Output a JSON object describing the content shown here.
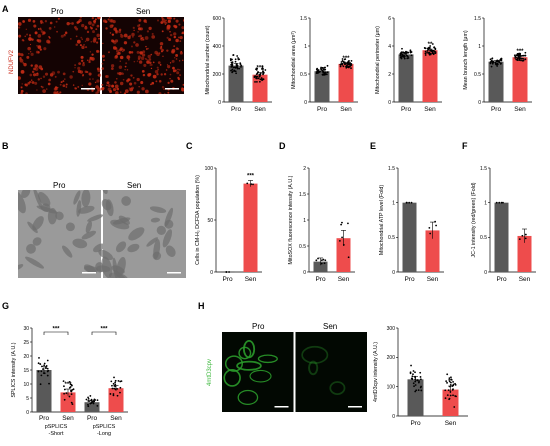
{
  "panel_labels": [
    "A",
    "B",
    "C",
    "D",
    "E",
    "F",
    "G",
    "H"
  ],
  "images": {
    "A": {
      "left_label": "Pro",
      "right_label": "Sen",
      "stain": "NDUFV2",
      "stain_color": "#cc2a1a",
      "bg": "#140303",
      "fg": "#c02a14"
    },
    "B": {
      "left_label": "Pro",
      "right_label": "Sen",
      "bg": "#9a9a9a",
      "fg": "#6e6e6e"
    },
    "H": {
      "left_label": "Pro",
      "right_label": "Sen",
      "stain": "4mtD3cpv",
      "stain_color": "#3fb83f",
      "bg": "#020802",
      "fg": "#2a9a2a"
    }
  },
  "colors": {
    "pro": "#595959",
    "sen": "#ee4c4c",
    "pro_light": "#9a9a9a",
    "sen_light": "#f8aaaa"
  },
  "chart_data": [
    {
      "id": "A1",
      "type": "bar",
      "categories": [
        "Pro",
        "Sen"
      ],
      "values": [
        260,
        195
      ],
      "errors": [
        15,
        15
      ],
      "ylabel": "Mitochondrial number (count)",
      "ylim": [
        0,
        600
      ],
      "yticks": [
        0,
        200,
        400,
        600
      ],
      "significance": [
        "",
        "***"
      ],
      "scatter_spread": [
        90,
        80
      ],
      "n_points": 45
    },
    {
      "id": "A2",
      "type": "bar",
      "categories": [
        "Pro",
        "Sen"
      ],
      "values": [
        0.55,
        0.68
      ],
      "errors": [
        0.02,
        0.02
      ],
      "ylabel": "Mitochondrial area (μm²)",
      "ylim": [
        0,
        1.5
      ],
      "yticks": [
        0,
        0.5,
        1.0,
        1.5
      ],
      "significance": [
        "",
        "***"
      ],
      "scatter_spread": [
        0.12,
        0.12
      ],
      "n_points": 45
    },
    {
      "id": "A3",
      "type": "bar",
      "categories": [
        "Pro",
        "Sen"
      ],
      "values": [
        3.4,
        3.7
      ],
      "errors": [
        0.08,
        0.08
      ],
      "ylabel": "Mitochondrial perimeter (μm)",
      "ylim": [
        0,
        6
      ],
      "yticks": [
        0,
        2,
        4,
        6
      ],
      "significance": [
        "",
        "**"
      ],
      "scatter_spread": [
        0.5,
        0.5
      ],
      "n_points": 45
    },
    {
      "id": "A4",
      "type": "bar",
      "categories": [
        "Pro",
        "Sen"
      ],
      "values": [
        0.72,
        0.8
      ],
      "errors": [
        0.02,
        0.02
      ],
      "ylabel": "Mean branch length (μm)",
      "ylim": [
        0,
        1.5
      ],
      "yticks": [
        0,
        0.5,
        1.0,
        1.5
      ],
      "significance": [
        "",
        "***"
      ],
      "scatter_spread": [
        0.1,
        0.1
      ],
      "n_points": 45
    },
    {
      "id": "C",
      "type": "bar",
      "categories": [
        "Pro",
        "Sen"
      ],
      "values": [
        0,
        85
      ],
      "errors": [
        0,
        3
      ],
      "ylabel": "Cells in CM-H₂ DCFDA population (%)",
      "ylim": [
        0,
        100
      ],
      "yticks": [
        0,
        50,
        100
      ],
      "significance": [
        "",
        "***"
      ],
      "scatter_spread": [
        0,
        3
      ],
      "n_points": 3
    },
    {
      "id": "D",
      "type": "bar",
      "categories": [
        "Pro",
        "Sen"
      ],
      "values": [
        0.2,
        0.65
      ],
      "errors": [
        0.07,
        0.15
      ],
      "ylabel": "MitoSOX fluorescence intensity (A.U.)",
      "ylim": [
        0,
        2.0
      ],
      "yticks": [
        0,
        0.5,
        1.0,
        1.5,
        2.0
      ],
      "significance": [
        "",
        ""
      ],
      "scatter_spread": [
        0.2,
        0.5
      ],
      "n_points": 7
    },
    {
      "id": "E",
      "type": "bar",
      "categories": [
        "Pro",
        "Sen"
      ],
      "values": [
        1.0,
        0.6
      ],
      "errors": [
        0,
        0.12
      ],
      "ylabel": "Mitochondrial ATP level (Fold)",
      "ylim": [
        0,
        1.5
      ],
      "yticks": [
        0,
        0.5,
        1.0,
        1.5
      ],
      "significance": [
        "",
        ""
      ],
      "scatter_spread": [
        0,
        0.25
      ],
      "n_points": 4
    },
    {
      "id": "F",
      "type": "bar",
      "categories": [
        "Pro",
        "Sen"
      ],
      "values": [
        1.0,
        0.52
      ],
      "errors": [
        0,
        0.1
      ],
      "ylabel": "JC-1 intensity (red/green) (Fold)",
      "ylim": [
        0,
        1.5
      ],
      "yticks": [
        0,
        0.5,
        1.0,
        1.5
      ],
      "significance": [
        "",
        ""
      ],
      "scatter_spread": [
        0,
        0.2
      ],
      "n_points": 4
    },
    {
      "id": "G",
      "type": "bar",
      "categories": [
        "Pro",
        "Sen",
        "Pro",
        "Sen"
      ],
      "group_labels": [
        "pSPLICS -Short",
        "pSPLICS -Long"
      ],
      "values": [
        15,
        7,
        3.5,
        8.5
      ],
      "errors": [
        1.2,
        1.2,
        0.6,
        1.0
      ],
      "ylabel": "SPLICS intensity (A.U.)",
      "ylim": [
        0,
        30
      ],
      "yticks": [
        0,
        5,
        10,
        15,
        20,
        25,
        30
      ],
      "significance": [
        "",
        "***",
        "",
        ""
      ],
      "brackets": [
        {
          "from": 0,
          "to": 1,
          "label": "***"
        },
        {
          "from": 2,
          "to": 3,
          "label": "***"
        }
      ],
      "scatter_spread": [
        6,
        5,
        3,
        5
      ],
      "n_points": 22
    },
    {
      "id": "H",
      "type": "bar",
      "categories": [
        "Pro",
        "Sen"
      ],
      "values": [
        125,
        90
      ],
      "errors": [
        10,
        12
      ],
      "ylabel": "4mtD3cpv intensity (A.U.)",
      "ylim": [
        0,
        300
      ],
      "yticks": [
        0,
        100,
        200,
        300
      ],
      "significance": [
        "",
        "**"
      ],
      "scatter_spread": [
        70,
        70
      ],
      "n_points": 30
    }
  ]
}
